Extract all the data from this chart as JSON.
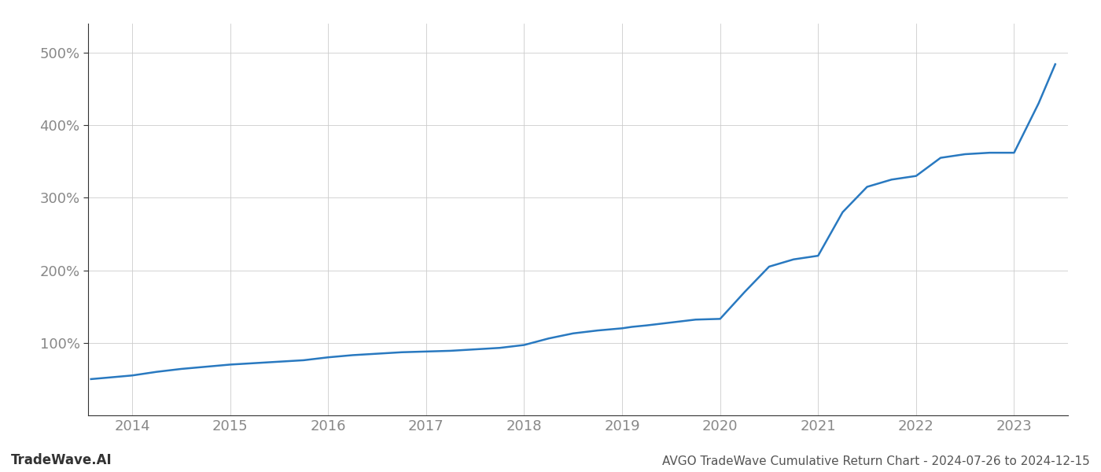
{
  "title": "AVGO TradeWave Cumulative Return Chart - 2024-07-26 to 2024-12-15",
  "watermark": "TradeWave.AI",
  "line_color": "#2979c0",
  "line_width": 1.8,
  "background_color": "#ffffff",
  "grid_color": "#cccccc",
  "x_years": [
    2014,
    2015,
    2016,
    2017,
    2018,
    2019,
    2020,
    2021,
    2022,
    2023
  ],
  "x_values": [
    2013.58,
    2013.75,
    2014.0,
    2014.25,
    2014.5,
    2014.75,
    2015.0,
    2015.25,
    2015.5,
    2015.75,
    2016.0,
    2016.25,
    2016.5,
    2016.75,
    2017.0,
    2017.25,
    2017.5,
    2017.75,
    2018.0,
    2018.25,
    2018.5,
    2018.75,
    2019.0,
    2019.1,
    2019.25,
    2019.5,
    2019.75,
    2020.0,
    2020.25,
    2020.5,
    2020.75,
    2021.0,
    2021.25,
    2021.5,
    2021.75,
    2022.0,
    2022.1,
    2022.25,
    2022.5,
    2022.75,
    2023.0,
    2023.25,
    2023.42
  ],
  "y_values": [
    50,
    52,
    55,
    60,
    64,
    67,
    70,
    72,
    74,
    76,
    80,
    83,
    85,
    87,
    88,
    89,
    91,
    93,
    97,
    106,
    113,
    117,
    120,
    122,
    124,
    128,
    132,
    133,
    170,
    205,
    215,
    220,
    280,
    315,
    325,
    330,
    340,
    355,
    360,
    362,
    362,
    430,
    484
  ],
  "yticks": [
    100,
    200,
    300,
    400,
    500
  ],
  "ytick_labels": [
    "100%",
    "200%",
    "300%",
    "400%",
    "500%"
  ],
  "ylim": [
    0,
    540
  ],
  "xlim": [
    2013.55,
    2023.55
  ],
  "tick_label_color": "#888888",
  "tick_fontsize": 13,
  "footer_fontsize": 11,
  "footer_color": "#555555",
  "spine_color": "#333333"
}
